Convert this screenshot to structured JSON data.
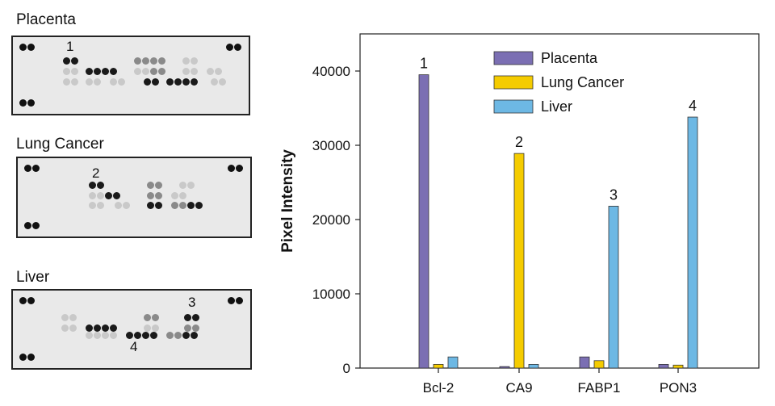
{
  "membranes": [
    {
      "title": "Placenta",
      "marker": "1"
    },
    {
      "title": "Lung Cancer",
      "marker": "2"
    },
    {
      "title": "Liver",
      "marker": "3",
      "marker2": "4"
    }
  ],
  "chart_data": {
    "type": "bar",
    "ylabel": "Pixel Intensity",
    "ylim": [
      0,
      45000
    ],
    "yticks": [
      0,
      10000,
      20000,
      30000,
      40000
    ],
    "categories": [
      "Bcl-2",
      "CA9",
      "FABP1",
      "PON3"
    ],
    "series": [
      {
        "name": "Placenta",
        "color": "#7b6fb3",
        "values": [
          39500,
          200,
          1500,
          500
        ]
      },
      {
        "name": "Lung Cancer",
        "color": "#f5cc00",
        "values": [
          500,
          28900,
          1000,
          400
        ]
      },
      {
        "name": "Liver",
        "color": "#6db8e4",
        "values": [
          1500,
          500,
          21800,
          33800
        ]
      }
    ],
    "bar_labels": [
      {
        "category": 0,
        "series": 0,
        "text": "1"
      },
      {
        "category": 1,
        "series": 1,
        "text": "2"
      },
      {
        "category": 2,
        "series": 2,
        "text": "3"
      },
      {
        "category": 3,
        "series": 2,
        "text": "4"
      }
    ],
    "legend_position": "top-right",
    "grid": false
  }
}
